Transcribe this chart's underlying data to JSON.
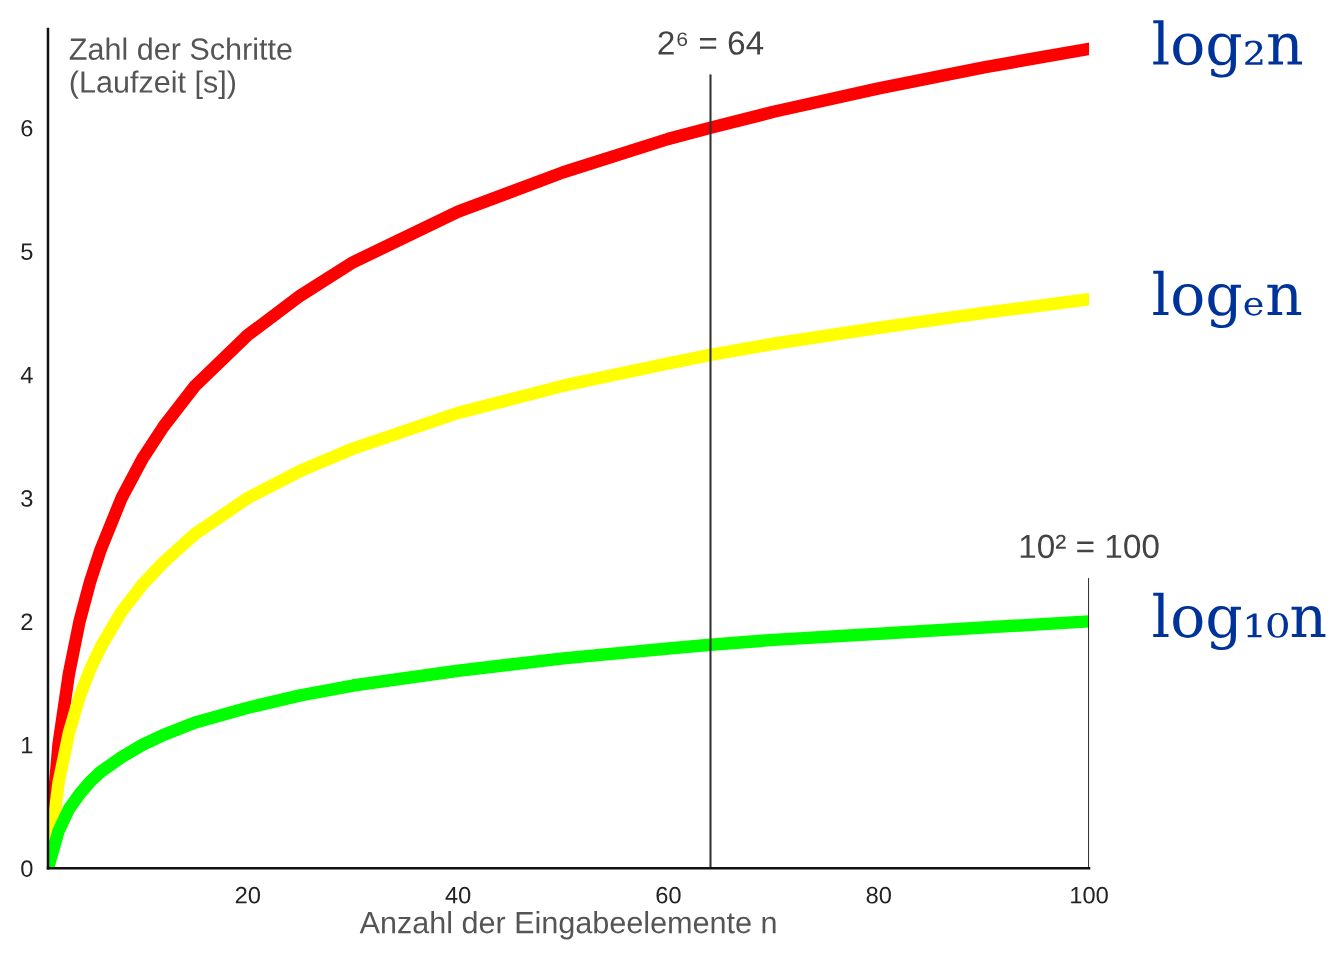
{
  "chart_data": {
    "type": "line",
    "xlabel": "Anzahl der Eingabeelemente n",
    "ylabel": "Zahl der Schritte\n(Laufzeit [s])",
    "x": [
      1,
      2,
      3,
      4,
      5,
      6,
      8,
      10,
      12,
      15,
      20,
      25,
      30,
      40,
      50,
      60,
      64,
      70,
      80,
      90,
      100
    ],
    "series": [
      {
        "name": "log₂n",
        "color": "#ff0000",
        "values": [
          0,
          1,
          1.58,
          2,
          2.32,
          2.58,
          3,
          3.32,
          3.58,
          3.91,
          4.32,
          4.64,
          4.91,
          5.32,
          5.64,
          5.91,
          6,
          6.13,
          6.32,
          6.49,
          6.64
        ]
      },
      {
        "name": "logₑn",
        "color": "#ffff00",
        "values": [
          0,
          0.69,
          1.1,
          1.39,
          1.61,
          1.79,
          2.08,
          2.3,
          2.48,
          2.71,
          3.0,
          3.22,
          3.4,
          3.69,
          3.91,
          4.09,
          4.16,
          4.25,
          4.38,
          4.5,
          4.61
        ]
      },
      {
        "name": "log₁₀n",
        "color": "#00ff00",
        "values": [
          0,
          0.3,
          0.48,
          0.6,
          0.7,
          0.78,
          0.9,
          1,
          1.08,
          1.18,
          1.3,
          1.4,
          1.48,
          1.6,
          1.7,
          1.78,
          1.81,
          1.85,
          1.9,
          1.95,
          2
        ]
      }
    ],
    "xlim": [
      1,
      100
    ],
    "ylim": [
      0,
      6.8
    ],
    "xticks": [
      20,
      40,
      60,
      80,
      100
    ],
    "yticks": [
      0,
      1,
      2,
      3,
      4,
      5,
      6
    ],
    "ref_lines": [
      {
        "axis": "x",
        "value": 64,
        "label": "2⁶ = 64",
        "color": "#333333"
      },
      {
        "axis": "x",
        "value": 100,
        "label": "10² = 100",
        "color": "#333333"
      }
    ],
    "grid": false,
    "legend": false,
    "marker": "none",
    "line_style": "solid"
  }
}
